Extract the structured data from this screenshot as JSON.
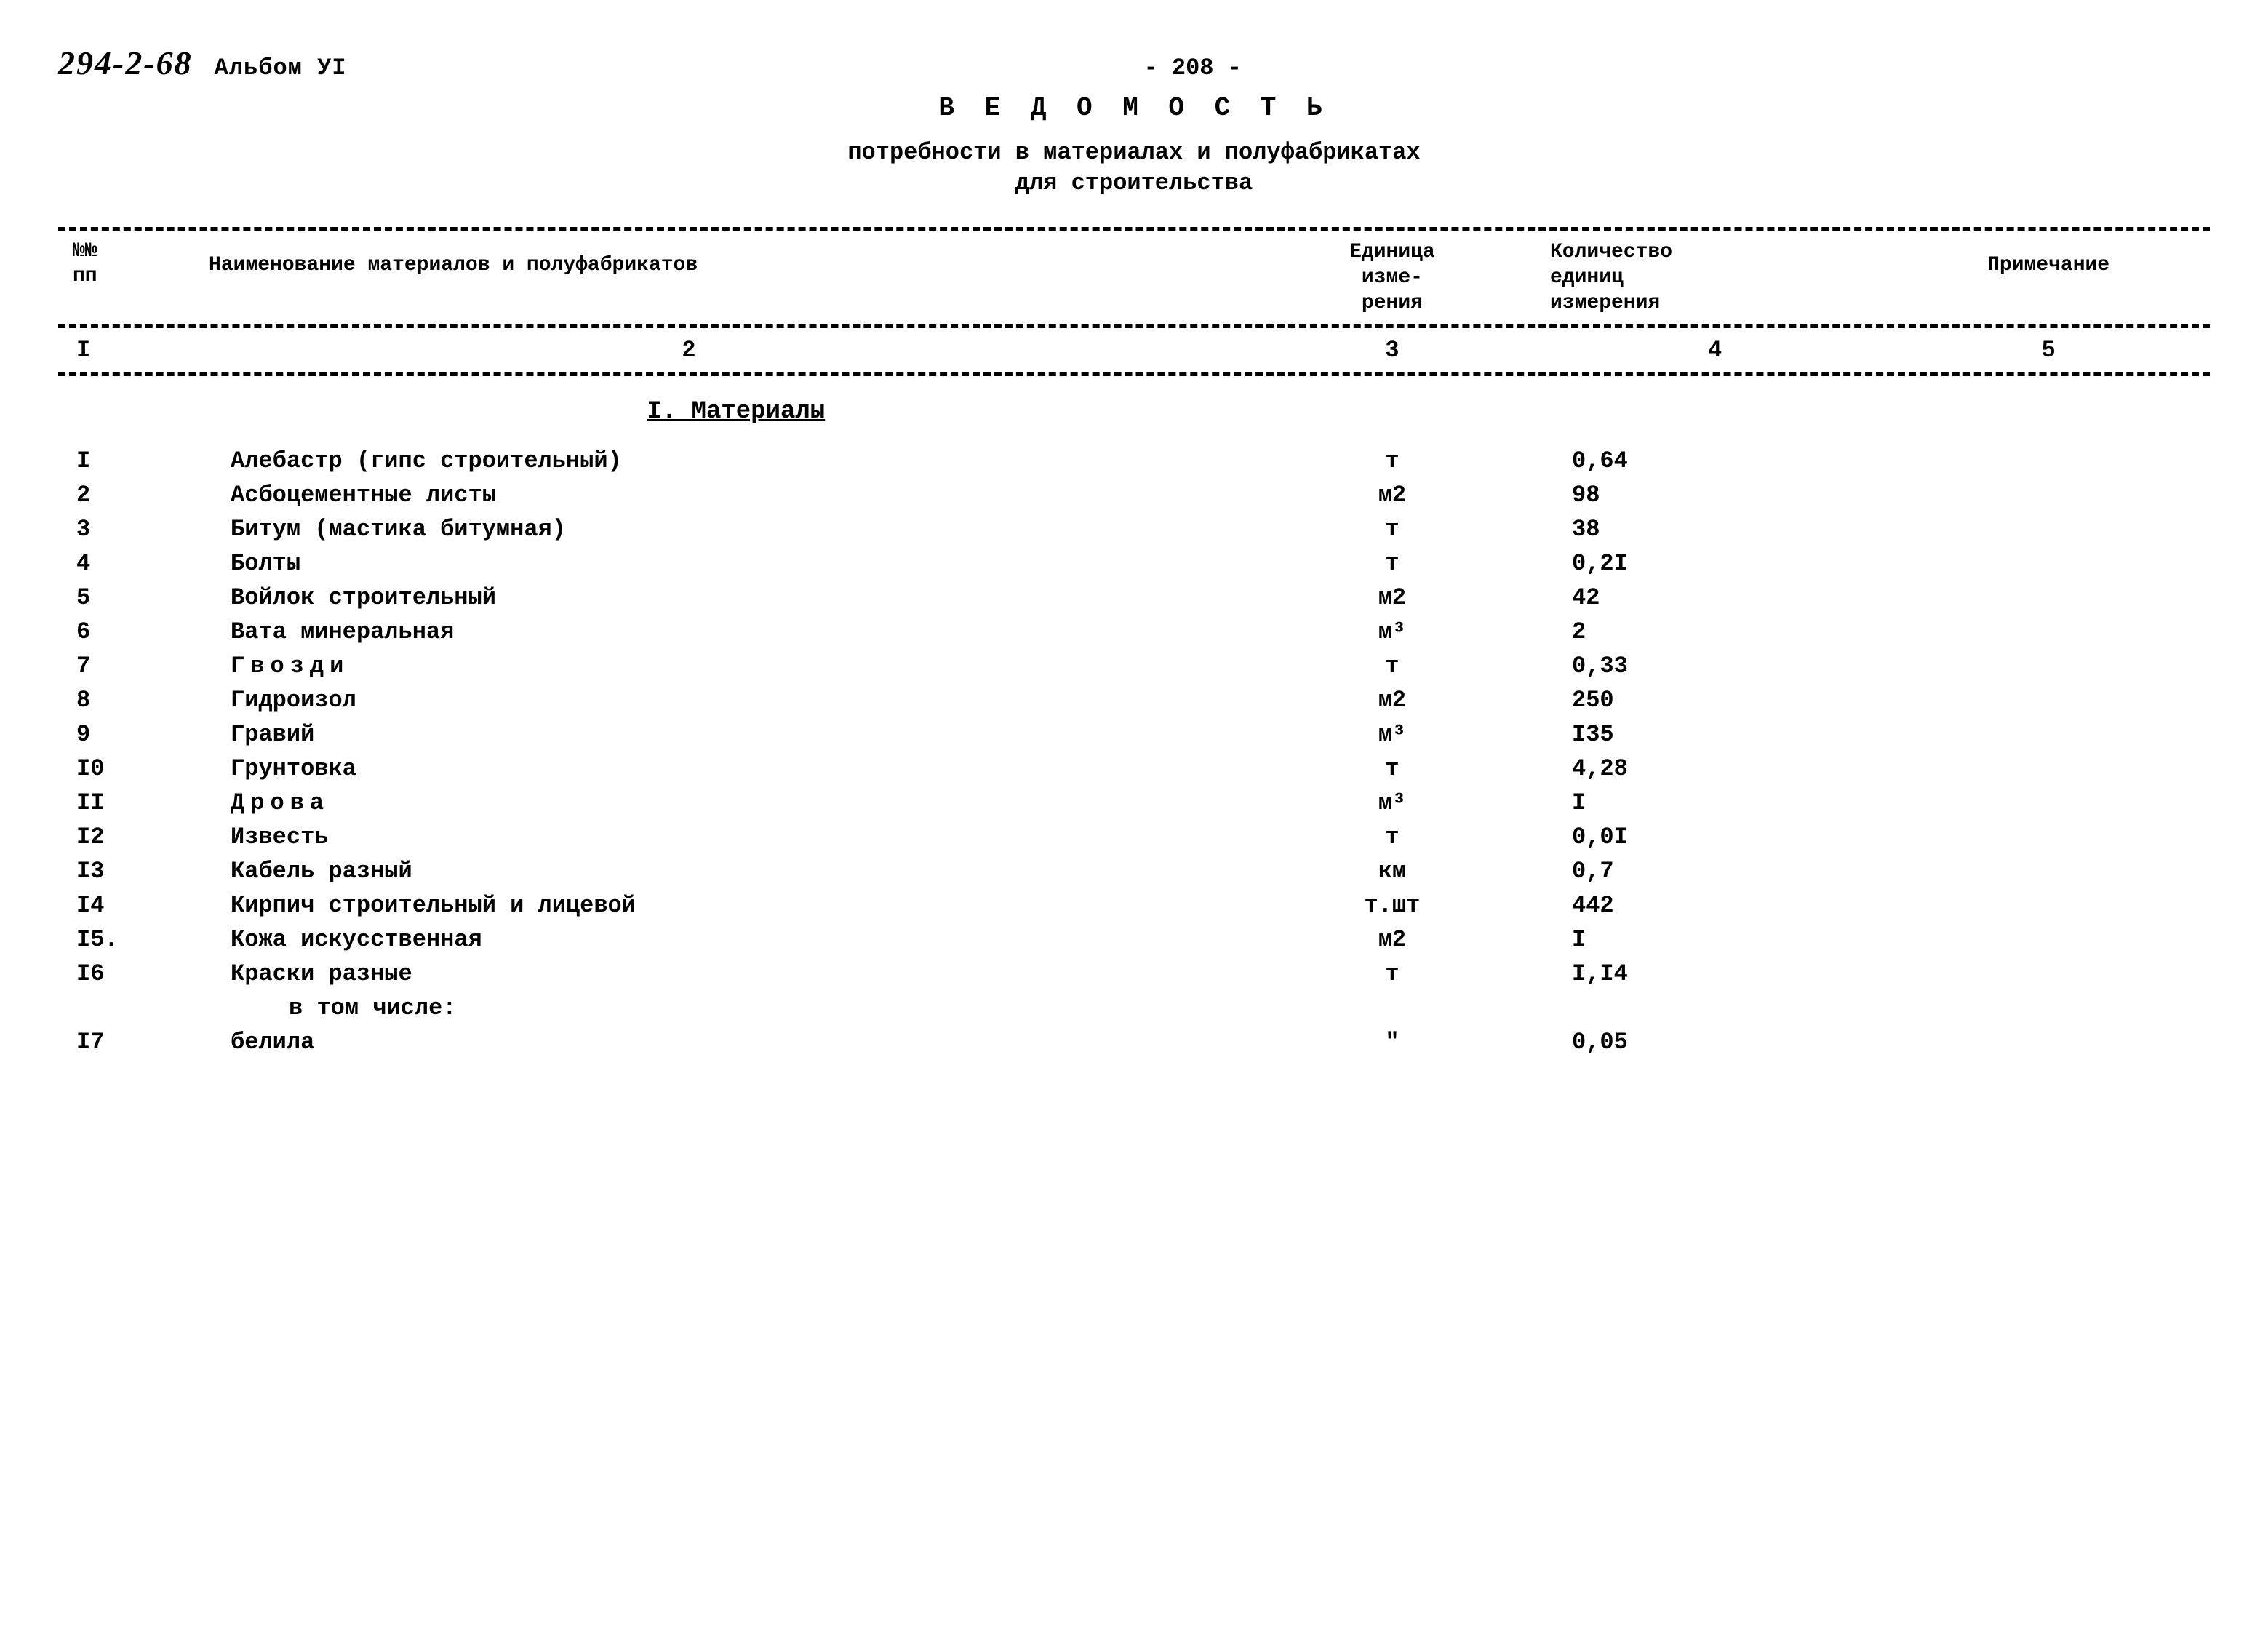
{
  "header": {
    "doc_number": "294-2-68",
    "album": "Альбом УI",
    "page_number": "- 208 -"
  },
  "title": "В Е Д О М О С Т Ь",
  "subtitle_line1": "потребности в материалах и полуфабрикатах",
  "subtitle_line2": "для строительства",
  "table": {
    "headers": {
      "num": "№№\nпп",
      "name": "Наименование материалов и полуфабрикатов",
      "unit": "Единица\nизме-\nрения",
      "qty": "Количество\nединиц\nизмерения",
      "note": "Примечание"
    },
    "col_numbers": {
      "c1": "I",
      "c2": "2",
      "c3": "3",
      "c4": "4",
      "c5": "5"
    },
    "section_title": "I. Материалы",
    "rows": [
      {
        "num": "I",
        "name": "Алебастр (гипс строительный)",
        "unit": "т",
        "qty": "0,64",
        "spaced": false
      },
      {
        "num": "2",
        "name": "Асбоцементные листы",
        "unit": "м2",
        "qty": "98",
        "spaced": false
      },
      {
        "num": "3",
        "name": "Битум (мастика битумная)",
        "unit": "т",
        "qty": "38",
        "spaced": false
      },
      {
        "num": "4",
        "name": "Болты",
        "unit": "т",
        "qty": "0,2I",
        "spaced": false
      },
      {
        "num": "5",
        "name": "Войлок строительный",
        "unit": "м2",
        "qty": "42",
        "spaced": false
      },
      {
        "num": "6",
        "name": "Вата минеральная",
        "unit": "м³",
        "qty": "2",
        "spaced": false
      },
      {
        "num": "7",
        "name": "Гвозди",
        "unit": "т",
        "qty": "0,33",
        "spaced": true
      },
      {
        "num": "8",
        "name": "Гидроизол",
        "unit": "м2",
        "qty": "250",
        "spaced": false
      },
      {
        "num": "9",
        "name": "Гравий",
        "unit": "м³",
        "qty": "I35",
        "spaced": false
      },
      {
        "num": "I0",
        "name": "Грунтовка",
        "unit": "т",
        "qty": "4,28",
        "spaced": false
      },
      {
        "num": "II",
        "name": "Дрова",
        "unit": "м³",
        "qty": "I",
        "spaced": true
      },
      {
        "num": "I2",
        "name": "Известь",
        "unit": "т",
        "qty": "0,0I",
        "spaced": false
      },
      {
        "num": "I3",
        "name": "Кабель разный",
        "unit": "км",
        "qty": "0,7",
        "spaced": false
      },
      {
        "num": "I4",
        "name": "Кирпич строительный и лицевой",
        "unit": "т.шт",
        "qty": "442",
        "spaced": false
      },
      {
        "num": "I5.",
        "name": "Кожа искусственная",
        "unit": "м2",
        "qty": "I",
        "spaced": false
      },
      {
        "num": "I6",
        "name": "Краски разные",
        "unit": "т",
        "qty": "I,I4",
        "spaced": false
      }
    ],
    "sub_label": "в том числе:",
    "sub_row": {
      "num": "I7",
      "name": "белила",
      "unit": "\"",
      "qty": "0,05"
    }
  }
}
